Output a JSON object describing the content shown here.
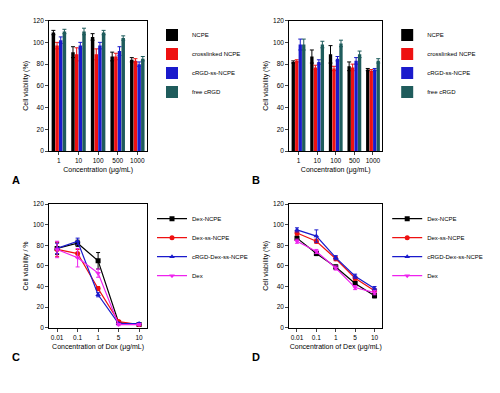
{
  "chart_data": [
    {
      "type": "bar",
      "title": "A",
      "x_label": "Concentration (μg/mL)",
      "y_label": "Cell viability (%)",
      "categories": [
        "1",
        "10",
        "100",
        "500",
        "1000"
      ],
      "series": [
        {
          "name": "NCPE",
          "color": "#000000",
          "values": [
            109,
            91,
            105,
            87,
            84
          ],
          "errors": [
            2,
            5,
            3,
            4,
            2
          ]
        },
        {
          "name": "crosslinked NCPE",
          "color": "#ee1111",
          "values": [
            97,
            89,
            89,
            87,
            83
          ],
          "errors": [
            3,
            6,
            5,
            3,
            2
          ]
        },
        {
          "name": "cRGD-ss-NCPE",
          "color": "#1a1acc",
          "values": [
            102,
            97,
            97,
            92,
            80
          ],
          "errors": [
            3,
            3,
            3,
            4,
            2
          ]
        },
        {
          "name": "free cRGD",
          "color": "#1f5c5c",
          "values": [
            110,
            110,
            109,
            104,
            85
          ],
          "errors": [
            2,
            3,
            2,
            2,
            2
          ]
        }
      ],
      "ylim": [
        0,
        120
      ],
      "yticks": [
        0,
        20,
        40,
        60,
        80,
        100,
        120
      ],
      "legend": "right"
    },
    {
      "type": "bar",
      "title": "B",
      "x_label": "Concentration (μg/mL)",
      "y_label": "Cell viability (%)",
      "categories": [
        "1",
        "10",
        "100",
        "500",
        "1000"
      ],
      "series": [
        {
          "name": "NCPE",
          "color": "#000000",
          "values": [
            82,
            87,
            89,
            78,
            75
          ],
          "errors": [
            1,
            6,
            8,
            4,
            1
          ]
        },
        {
          "name": "crosslinked NCPE",
          "color": "#ee1111",
          "values": [
            83,
            77,
            76,
            77,
            74
          ],
          "errors": [
            1,
            2,
            2,
            3,
            1
          ]
        },
        {
          "name": "cRGD-ss-NCPE",
          "color": "#1a1acc",
          "values": [
            98,
            82,
            85,
            83,
            75
          ],
          "errors": [
            5,
            2,
            2,
            3,
            1
          ]
        },
        {
          "name": "free cRGD",
          "color": "#1f5c5c",
          "values": [
            98,
            98,
            99,
            89,
            83
          ],
          "errors": [
            5,
            3,
            3,
            3,
            2
          ]
        }
      ],
      "ylim": [
        0,
        120
      ],
      "yticks": [
        0,
        20,
        40,
        60,
        80,
        100,
        120
      ],
      "legend": "right"
    },
    {
      "type": "line",
      "title": "C",
      "x_label": "Concentration of Dox (μg/mL)",
      "y_label": "Cell viability / %",
      "categories": [
        "0.01",
        "0.1",
        "1",
        "5",
        "10"
      ],
      "series": [
        {
          "name": "Dex-NCPE",
          "color": "#000000",
          "marker": "square",
          "values": [
            77,
            82,
            65,
            5,
            3
          ],
          "errors": [
            6,
            3,
            8,
            1,
            1
          ]
        },
        {
          "name": "Dex-ss-NCPE",
          "color": "#ee1111",
          "marker": "circle",
          "values": [
            76,
            72,
            38,
            6,
            3
          ],
          "errors": [
            7,
            4,
            2,
            1,
            1
          ]
        },
        {
          "name": "cRGD-Dex-ss-NCPE",
          "color": "#1a1acc",
          "marker": "triangle-up",
          "values": [
            77,
            84,
            32,
            4,
            4
          ],
          "errors": [
            5,
            3,
            2,
            1,
            1
          ]
        },
        {
          "name": "Dex",
          "color": "#ee22ee",
          "marker": "triangle-down",
          "values": [
            76,
            68,
            53,
            3,
            3
          ],
          "errors": [
            8,
            9,
            4,
            1,
            1
          ]
        }
      ],
      "ylim": [
        0,
        120
      ],
      "yticks": [
        0,
        20,
        40,
        60,
        80,
        100,
        120
      ],
      "legend": "right"
    },
    {
      "type": "line",
      "title": "D",
      "x_label": "Concentration of Dex (μg/mL)",
      "y_label": "Cell viability (%)",
      "categories": [
        "0.01",
        "0.1",
        "1",
        "5",
        "10"
      ],
      "series": [
        {
          "name": "Dex-NCPE",
          "color": "#000000",
          "marker": "square",
          "values": [
            87,
            72,
            59,
            43,
            31
          ],
          "errors": [
            2,
            2,
            2,
            2,
            2
          ]
        },
        {
          "name": "Dex-ss-NCPE",
          "color": "#ee1111",
          "marker": "circle",
          "values": [
            92,
            84,
            67,
            48,
            36
          ],
          "errors": [
            2,
            2,
            2,
            2,
            2
          ]
        },
        {
          "name": "cRGD-Dex-ss-NCPE",
          "color": "#1a1acc",
          "marker": "triangle-up",
          "values": [
            95,
            89,
            68,
            50,
            38
          ],
          "errors": [
            2,
            6,
            2,
            2,
            2
          ]
        },
        {
          "name": "Dex",
          "color": "#ee22ee",
          "marker": "triangle-down",
          "values": [
            84,
            74,
            58,
            39,
            34
          ],
          "errors": [
            2,
            2,
            2,
            2,
            2
          ]
        }
      ],
      "ylim": [
        0,
        120
      ],
      "yticks": [
        0,
        20,
        40,
        60,
        80,
        100,
        120
      ],
      "legend": "right"
    }
  ]
}
